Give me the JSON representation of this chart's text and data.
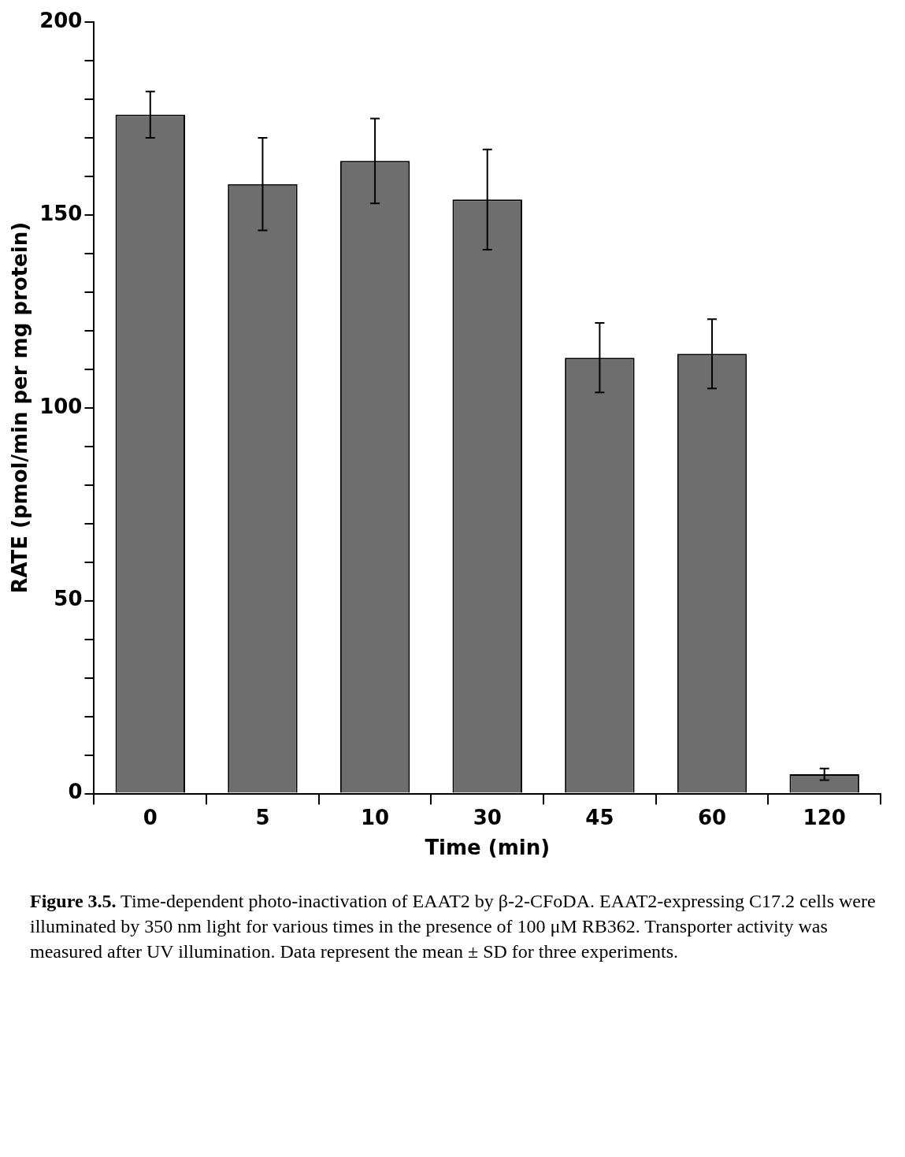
{
  "chart_data": {
    "type": "bar",
    "xlabel": "Time (min)",
    "ylabel": "RATE (pmol/min per mg protein)",
    "categories": [
      "0",
      "5",
      "10",
      "30",
      "45",
      "60",
      "120"
    ],
    "values": [
      176,
      158,
      164,
      154,
      113,
      114,
      5
    ],
    "errors": [
      6,
      12,
      11,
      13,
      9,
      9,
      1.5
    ],
    "color": "#6e6e6e",
    "ylim": [
      0,
      200
    ],
    "yticks": [
      0,
      {
        "value": 10,
        "label": null
      },
      {
        "value": 20,
        "label": null
      },
      {
        "value": 30,
        "label": null
      },
      {
        "value": 40,
        "label": null
      },
      50,
      {
        "value": 60,
        "label": null
      },
      {
        "value": 70,
        "label": null
      },
      {
        "value": 80,
        "label": null
      },
      {
        "value": 90,
        "label": null
      },
      100,
      {
        "value": 110,
        "label": null
      },
      {
        "value": 120,
        "label": null
      },
      {
        "value": 130,
        "label": null
      },
      {
        "value": 140,
        "label": null
      },
      150,
      {
        "value": 160,
        "label": null
      },
      {
        "value": 170,
        "label": null
      },
      {
        "value": 180,
        "label": null
      },
      {
        "value": 190,
        "label": null
      },
      200
    ],
    "grid": false,
    "legend": false,
    "annotations": [
      "Figure 3.5.",
      "Time-dependent photo-inactivation of EAAT2 by β-2-CFoDA. EAAT2-expressing C17.2 cells were illuminated by 350 nm light for various times in the presence of 100 μM RB362. Transporter activity was measured after UV illumination. Data represent the mean ± SD for three experiments."
    ]
  }
}
